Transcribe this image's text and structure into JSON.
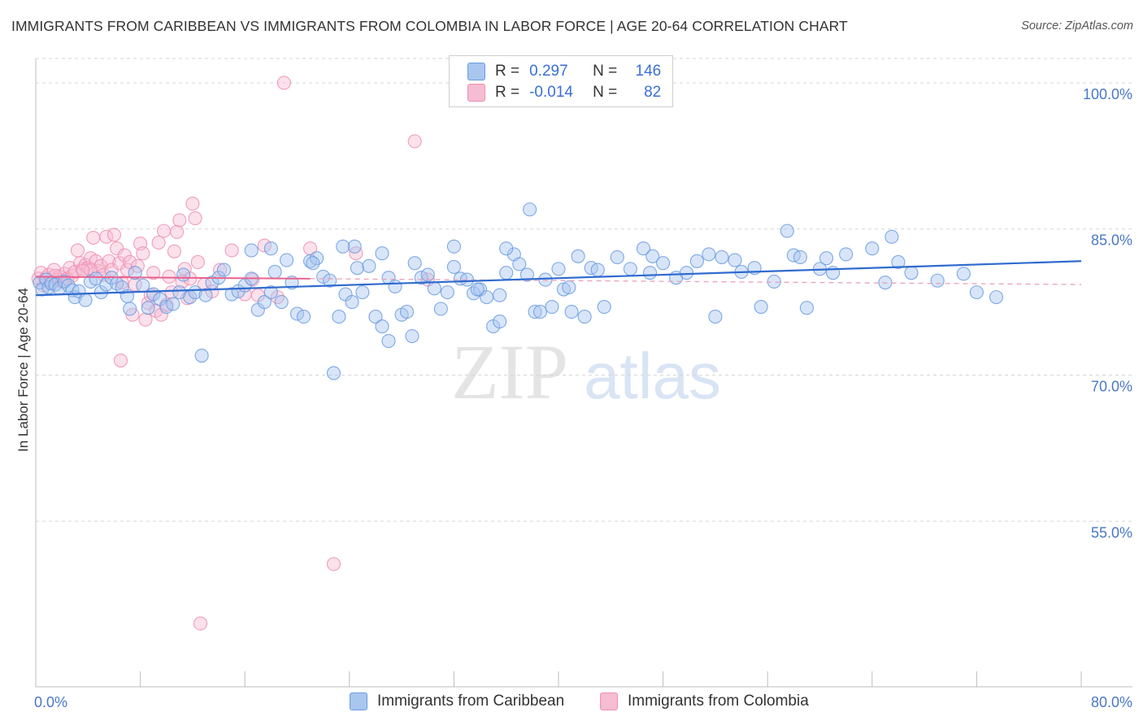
{
  "title": "IMMIGRANTS FROM CARIBBEAN VS IMMIGRANTS FROM COLOMBIA IN LABOR FORCE | AGE 20-64 CORRELATION CHART",
  "source": "Source: ZipAtlas.com",
  "watermark": {
    "zip": "ZIP",
    "atlas": "atlas"
  },
  "legend": {
    "r_label": "R =",
    "n_label": "N =",
    "series": [
      {
        "r": "0.297",
        "n": "146"
      },
      {
        "r": "-0.014",
        "n": "82"
      }
    ]
  },
  "chart_data": {
    "type": "scatter",
    "title": "IMMIGRANTS FROM CARIBBEAN VS IMMIGRANTS FROM COLOMBIA IN LABOR FORCE | AGE 20-64 CORRELATION CHART",
    "xlabel": "",
    "ylabel": "In Labor Force | Age 20-64",
    "xlim": [
      0,
      80
    ],
    "ylim": [
      38,
      102.5
    ],
    "x_tick_labels": [
      {
        "value": 0,
        "label": "0.0%"
      },
      {
        "value": 80,
        "label": "80.0%"
      }
    ],
    "y_ticks": [
      {
        "value": 55,
        "label": "55.0%"
      },
      {
        "value": 70,
        "label": "70.0%"
      },
      {
        "value": 85,
        "label": "85.0%"
      },
      {
        "value": 100,
        "label": "100.0%"
      }
    ],
    "grid": "horizontal dashed",
    "series": [
      {
        "name": "Immigrants from Caribbean",
        "color": "#6a9be0",
        "fill": "#a9c6ef",
        "r": 0.297,
        "n": 146,
        "trend": {
          "x": [
            0,
            80
          ],
          "y": [
            78.2,
            81.7
          ],
          "style": "solid",
          "color": "#2f6bcf"
        },
        "points": [
          [
            0.3,
            79.5
          ],
          [
            0.5,
            78.8
          ],
          [
            0.8,
            79.8
          ],
          [
            1.0,
            79.0
          ],
          [
            1.2,
            79.4
          ],
          [
            1.5,
            79.3
          ],
          [
            1.8,
            78.9
          ],
          [
            2.2,
            79.6
          ],
          [
            2.5,
            79.2
          ],
          [
            2.8,
            78.7
          ],
          [
            3.0,
            78.0
          ],
          [
            3.3,
            78.6
          ],
          [
            3.8,
            77.7
          ],
          [
            4.2,
            79.6
          ],
          [
            4.6,
            79.9
          ],
          [
            5.0,
            78.5
          ],
          [
            5.4,
            79.3
          ],
          [
            5.8,
            80.0
          ],
          [
            6.2,
            79.4
          ],
          [
            6.6,
            79.0
          ],
          [
            7.0,
            78.1
          ],
          [
            7.2,
            76.8
          ],
          [
            7.6,
            80.5
          ],
          [
            8.2,
            79.2
          ],
          [
            8.6,
            76.9
          ],
          [
            9.0,
            78.3
          ],
          [
            9.5,
            77.8
          ],
          [
            10.0,
            77.0
          ],
          [
            10.5,
            77.3
          ],
          [
            11.0,
            78.5
          ],
          [
            11.3,
            80.3
          ],
          [
            11.8,
            78.0
          ],
          [
            12.2,
            78.5
          ],
          [
            13.0,
            78.2
          ],
          [
            13.5,
            79.5
          ],
          [
            14.0,
            80.0
          ],
          [
            14.4,
            80.8
          ],
          [
            15.0,
            78.3
          ],
          [
            15.5,
            78.6
          ],
          [
            16.0,
            79.2
          ],
          [
            16.5,
            79.9
          ],
          [
            17.0,
            76.7
          ],
          [
            17.5,
            77.5
          ],
          [
            18.0,
            78.5
          ],
          [
            18.3,
            80.6
          ],
          [
            18.8,
            77.5
          ],
          [
            19.2,
            81.8
          ],
          [
            19.6,
            79.5
          ],
          [
            20.0,
            76.3
          ],
          [
            20.5,
            76.0
          ],
          [
            21.0,
            81.7
          ],
          [
            21.5,
            82.0
          ],
          [
            22.0,
            80.1
          ],
          [
            22.5,
            79.7
          ],
          [
            23.2,
            76.0
          ],
          [
            23.7,
            78.3
          ],
          [
            24.2,
            77.5
          ],
          [
            24.6,
            81.0
          ],
          [
            25.0,
            78.5
          ],
          [
            25.5,
            81.2
          ],
          [
            26.0,
            76.0
          ],
          [
            26.5,
            82.5
          ],
          [
            27.0,
            80.0
          ],
          [
            27.5,
            79.1
          ],
          [
            28.0,
            76.2
          ],
          [
            28.4,
            76.5
          ],
          [
            29.0,
            81.5
          ],
          [
            29.5,
            80.0
          ],
          [
            30.0,
            80.3
          ],
          [
            30.5,
            78.9
          ],
          [
            31.0,
            76.8
          ],
          [
            31.5,
            78.5
          ],
          [
            32.0,
            81.1
          ],
          [
            32.5,
            79.9
          ],
          [
            33.0,
            79.8
          ],
          [
            33.5,
            78.4
          ],
          [
            34.0,
            78.8
          ],
          [
            34.5,
            78.0
          ],
          [
            35.0,
            75.0
          ],
          [
            35.5,
            78.2
          ],
          [
            36.0,
            80.5
          ],
          [
            36.6,
            82.4
          ],
          [
            37.0,
            81.4
          ],
          [
            37.6,
            80.3
          ],
          [
            38.2,
            76.5
          ],
          [
            38.6,
            76.5
          ],
          [
            39.0,
            79.8
          ],
          [
            39.5,
            77.0
          ],
          [
            40.0,
            80.9
          ],
          [
            40.4,
            78.8
          ],
          [
            40.8,
            79.0
          ],
          [
            41.5,
            82.2
          ],
          [
            42.0,
            76.0
          ],
          [
            42.5,
            81.0
          ],
          [
            43.0,
            80.8
          ],
          [
            43.5,
            77.0
          ],
          [
            44.5,
            82.1
          ],
          [
            45.5,
            80.9
          ],
          [
            46.5,
            83.0
          ],
          [
            47.2,
            82.2
          ],
          [
            48.0,
            81.5
          ],
          [
            49.0,
            80.0
          ],
          [
            49.8,
            80.5
          ],
          [
            50.6,
            81.7
          ],
          [
            51.5,
            82.4
          ],
          [
            52.0,
            76.0
          ],
          [
            52.5,
            82.1
          ],
          [
            53.5,
            81.8
          ],
          [
            54.0,
            80.6
          ],
          [
            55.0,
            81.0
          ],
          [
            55.5,
            77.0
          ],
          [
            56.5,
            79.6
          ],
          [
            57.5,
            84.8
          ],
          [
            58.0,
            82.3
          ],
          [
            59.0,
            76.9
          ],
          [
            60.0,
            80.9
          ],
          [
            60.5,
            82.0
          ],
          [
            61.0,
            80.5
          ],
          [
            62.0,
            82.4
          ],
          [
            64.0,
            83.0
          ],
          [
            65.0,
            79.5
          ],
          [
            65.5,
            84.2
          ],
          [
            66.0,
            81.6
          ],
          [
            67.0,
            80.5
          ],
          [
            69.0,
            79.7
          ],
          [
            71.0,
            80.4
          ],
          [
            72.0,
            78.5
          ],
          [
            73.5,
            78.0
          ],
          [
            12.7,
            72.0
          ],
          [
            22.8,
            70.2
          ],
          [
            33.8,
            78.8
          ],
          [
            37.8,
            87.0
          ],
          [
            27.0,
            73.5
          ],
          [
            21.2,
            81.5
          ],
          [
            16.5,
            82.8
          ],
          [
            18.0,
            83.0
          ],
          [
            24.4,
            83.2
          ],
          [
            36.0,
            83.0
          ],
          [
            47.0,
            80.5
          ],
          [
            23.5,
            83.2
          ],
          [
            28.8,
            74.0
          ],
          [
            41.0,
            76.5
          ],
          [
            32.0,
            83.2
          ],
          [
            26.5,
            75.0
          ],
          [
            35.5,
            75.5
          ],
          [
            58.5,
            82.1
          ]
        ]
      },
      {
        "name": "Immigrants from Colombia",
        "color": "#ec8fb0",
        "fill": "#f6bcd2",
        "r": -0.014,
        "n": 82,
        "trend": {
          "x": [
            0,
            21
          ],
          "y": [
            80.1,
            79.9
          ],
          "style": "solid",
          "color": "#e8628d"
        },
        "trend_ext": {
          "x": [
            21,
            80
          ],
          "y": [
            79.9,
            79.3
          ],
          "style": "dashed",
          "color": "#e8a0ba"
        },
        "points": [
          [
            0.2,
            79.9
          ],
          [
            0.4,
            80.5
          ],
          [
            0.6,
            79.2
          ],
          [
            0.8,
            80.0
          ],
          [
            1.0,
            80.3
          ],
          [
            1.2,
            79.5
          ],
          [
            1.4,
            80.8
          ],
          [
            1.6,
            79.8
          ],
          [
            1.8,
            80.1
          ],
          [
            2.0,
            79.6
          ],
          [
            2.2,
            80.4
          ],
          [
            2.4,
            79.9
          ],
          [
            2.6,
            81.0
          ],
          [
            2.8,
            80.2
          ],
          [
            3.0,
            80.6
          ],
          [
            3.2,
            82.8
          ],
          [
            3.4,
            81.5
          ],
          [
            3.6,
            80.9
          ],
          [
            3.8,
            81.3
          ],
          [
            4.0,
            81.0
          ],
          [
            4.2,
            82.0
          ],
          [
            4.4,
            84.1
          ],
          [
            4.6,
            81.7
          ],
          [
            4.8,
            80.7
          ],
          [
            5.0,
            81.2
          ],
          [
            5.2,
            80.3
          ],
          [
            5.4,
            84.2
          ],
          [
            5.6,
            81.7
          ],
          [
            5.8,
            80.8
          ],
          [
            6.0,
            84.4
          ],
          [
            6.2,
            83.0
          ],
          [
            6.4,
            81.5
          ],
          [
            6.6,
            79.5
          ],
          [
            6.8,
            82.3
          ],
          [
            7.0,
            80.8
          ],
          [
            7.2,
            81.6
          ],
          [
            7.4,
            76.2
          ],
          [
            7.6,
            79.3
          ],
          [
            7.8,
            81.2
          ],
          [
            8.0,
            83.5
          ],
          [
            8.2,
            82.5
          ],
          [
            8.4,
            75.7
          ],
          [
            8.6,
            77.4
          ],
          [
            8.8,
            78.2
          ],
          [
            9.0,
            80.5
          ],
          [
            9.2,
            76.6
          ],
          [
            9.4,
            83.6
          ],
          [
            9.6,
            76.2
          ],
          [
            9.8,
            84.8
          ],
          [
            10.0,
            77.2
          ],
          [
            10.2,
            80.1
          ],
          [
            10.4,
            78.5
          ],
          [
            10.6,
            82.7
          ],
          [
            10.8,
            84.7
          ],
          [
            11.0,
            85.9
          ],
          [
            11.2,
            79.6
          ],
          [
            11.4,
            80.9
          ],
          [
            11.6,
            77.9
          ],
          [
            11.8,
            79.9
          ],
          [
            12.0,
            87.6
          ],
          [
            12.2,
            86.1
          ],
          [
            12.4,
            81.6
          ],
          [
            12.9,
            79.3
          ],
          [
            13.5,
            78.6
          ],
          [
            14.1,
            80.8
          ],
          [
            15.0,
            82.8
          ],
          [
            16.0,
            78.3
          ],
          [
            16.6,
            79.8
          ],
          [
            17.0,
            78.2
          ],
          [
            17.5,
            83.3
          ],
          [
            19.0,
            100.0
          ],
          [
            21.0,
            83.0
          ],
          [
            22.8,
            50.6
          ],
          [
            12.6,
            44.5
          ],
          [
            6.5,
            71.5
          ],
          [
            30.0,
            79.8
          ],
          [
            29.0,
            94.0
          ],
          [
            24.5,
            82.5
          ],
          [
            18.5,
            78.0
          ],
          [
            4.2,
            80.8
          ],
          [
            1.5,
            80.2
          ],
          [
            3.6,
            80.7
          ]
        ]
      }
    ]
  }
}
